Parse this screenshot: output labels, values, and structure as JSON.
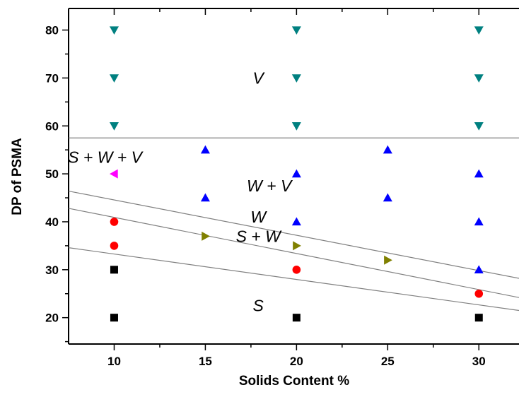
{
  "chart_data": {
    "type": "scatter",
    "title": "",
    "xlabel": "Solids Content %",
    "ylabel": "DP of PSMA",
    "xlim": [
      7.5,
      32.2
    ],
    "ylim": [
      14.5,
      84.5
    ],
    "xticks": [
      10,
      15,
      20,
      25,
      30
    ],
    "yticks": [
      20,
      30,
      40,
      50,
      60,
      70,
      80
    ],
    "grid": false,
    "legend": "none",
    "series": [
      {
        "marker": "square",
        "color": "#000000",
        "points": [
          [
            10,
            20
          ],
          [
            10,
            30
          ],
          [
            20,
            20
          ],
          [
            30,
            20
          ]
        ]
      },
      {
        "marker": "circle",
        "color": "#ff0000",
        "points": [
          [
            10,
            35
          ],
          [
            10,
            40
          ],
          [
            20,
            30
          ],
          [
            30,
            25
          ]
        ]
      },
      {
        "marker": "triangle-right",
        "color": "#808000",
        "points": [
          [
            15,
            37
          ],
          [
            20,
            35
          ],
          [
            25,
            32
          ]
        ]
      },
      {
        "marker": "triangle-left",
        "color": "#ff00ff",
        "points": [
          [
            10,
            50
          ]
        ]
      },
      {
        "marker": "triangle-up",
        "color": "#0000ff",
        "points": [
          [
            15,
            45
          ],
          [
            15,
            55
          ],
          [
            20,
            40
          ],
          [
            20,
            50
          ],
          [
            25,
            45
          ],
          [
            25,
            55
          ],
          [
            30,
            30
          ],
          [
            30,
            40
          ],
          [
            30,
            50
          ]
        ]
      },
      {
        "marker": "triangle-down",
        "color": "#008080",
        "points": [
          [
            10,
            60
          ],
          [
            10,
            70
          ],
          [
            10,
            80
          ],
          [
            20,
            60
          ],
          [
            20,
            70
          ],
          [
            20,
            80
          ],
          [
            30,
            60
          ],
          [
            30,
            70
          ],
          [
            30,
            80
          ]
        ]
      }
    ],
    "boundary_lines": [
      {
        "from": [
          7.5,
          57.5
        ],
        "to": [
          32.2,
          57.5
        ]
      },
      {
        "from": [
          7.5,
          46.4
        ],
        "to": [
          32.2,
          28.2
        ]
      },
      {
        "from": [
          7.5,
          42.8
        ],
        "to": [
          32.2,
          24.2
        ]
      },
      {
        "from": [
          7.5,
          34.6
        ],
        "to": [
          32.2,
          21.5
        ]
      }
    ],
    "region_labels": [
      {
        "text": "V",
        "x": 17.9,
        "y": 70
      },
      {
        "text": "S + W + V",
        "x": 9.5,
        "y": 53.5
      },
      {
        "text": "W + V",
        "x": 18.5,
        "y": 47.5
      },
      {
        "text": "W",
        "x": 17.9,
        "y": 41
      },
      {
        "text": "S + W",
        "x": 17.9,
        "y": 37
      },
      {
        "text": "S",
        "x": 17.9,
        "y": 22.5
      }
    ]
  }
}
